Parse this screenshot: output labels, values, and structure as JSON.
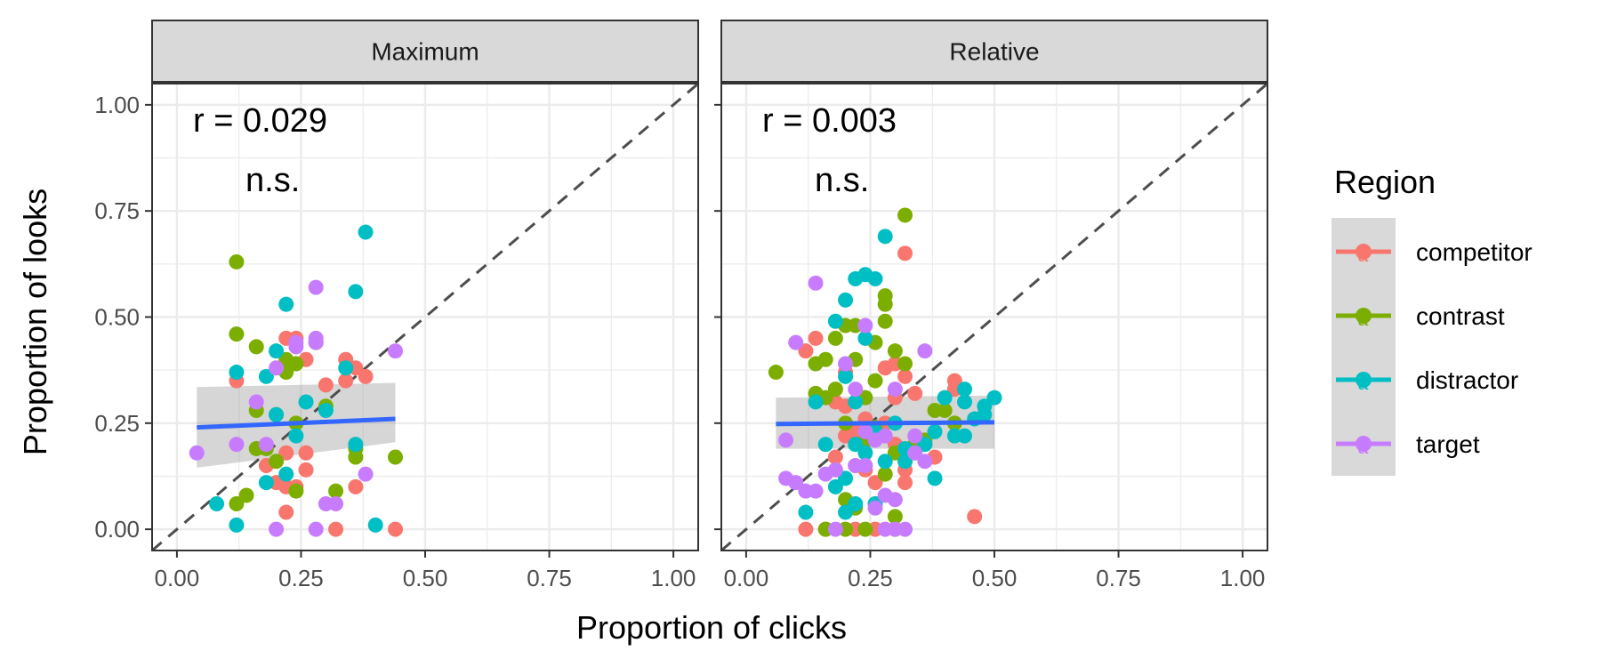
{
  "chart_data": {
    "type": "scatter",
    "xlabel": "Proportion of clicks",
    "ylabel": "Proportion of looks",
    "xlim": [
      -0.05,
      1.05
    ],
    "ylim": [
      -0.05,
      1.05
    ],
    "x_ticks": [
      "0.00",
      "0.25",
      "0.50",
      "0.75",
      "1.00"
    ],
    "y_ticks": [
      "0.00",
      "0.25",
      "0.50",
      "0.75",
      "1.00"
    ],
    "grid": true,
    "reference_line": {
      "slope": 1,
      "intercept": 0,
      "style": "dashed",
      "color": "#4d4d4d"
    },
    "legend": {
      "title": "Region",
      "placement": "right",
      "items": [
        {
          "label": "competitor",
          "color": "#F8766D"
        },
        {
          "label": "contrast",
          "color": "#7CAE00"
        },
        {
          "label": "distractor",
          "color": "#00BFC4"
        },
        {
          "label": "target",
          "color": "#C77CFF"
        }
      ]
    },
    "panels": [
      {
        "title": "Maximum",
        "annotation": "r = 0.029",
        "significance": "n.s.",
        "fit": {
          "color": "#3366FF",
          "x": [
            0.04,
            0.44
          ],
          "y": [
            0.24,
            0.26
          ],
          "ci_lower": [
            0.145,
            0.205
          ],
          "ci_upper": [
            0.335,
            0.345
          ]
        },
        "series": [
          {
            "name": "competitor",
            "points": [
              [
                0.12,
                0.35
              ],
              [
                0.18,
                0.15
              ],
              [
                0.2,
                0.11
              ],
              [
                0.22,
                0.04
              ],
              [
                0.22,
                0.1
              ],
              [
                0.22,
                0.18
              ],
              [
                0.22,
                0.45
              ],
              [
                0.24,
                0.45
              ],
              [
                0.24,
                0.1
              ],
              [
                0.26,
                0.4
              ],
              [
                0.26,
                0.18
              ],
              [
                0.26,
                0.14
              ],
              [
                0.3,
                0.34
              ],
              [
                0.32,
                0.0
              ],
              [
                0.34,
                0.4
              ],
              [
                0.34,
                0.35
              ],
              [
                0.36,
                0.38
              ],
              [
                0.36,
                0.1
              ],
              [
                0.38,
                0.36
              ],
              [
                0.44,
                0.0
              ]
            ]
          },
          {
            "name": "contrast",
            "points": [
              [
                0.12,
                0.63
              ],
              [
                0.12,
                0.46
              ],
              [
                0.12,
                0.06
              ],
              [
                0.14,
                0.08
              ],
              [
                0.16,
                0.43
              ],
              [
                0.16,
                0.28
              ],
              [
                0.16,
                0.19
              ],
              [
                0.18,
                0.19
              ],
              [
                0.2,
                0.27
              ],
              [
                0.2,
                0.16
              ],
              [
                0.22,
                0.37
              ],
              [
                0.22,
                0.4
              ],
              [
                0.24,
                0.39
              ],
              [
                0.24,
                0.25
              ],
              [
                0.24,
                0.09
              ],
              [
                0.28,
                0.44
              ],
              [
                0.3,
                0.29
              ],
              [
                0.32,
                0.09
              ],
              [
                0.36,
                0.19
              ],
              [
                0.36,
                0.17
              ],
              [
                0.44,
                0.17
              ]
            ]
          },
          {
            "name": "distractor",
            "points": [
              [
                0.08,
                0.06
              ],
              [
                0.12,
                0.37
              ],
              [
                0.12,
                0.01
              ],
              [
                0.18,
                0.36
              ],
              [
                0.18,
                0.11
              ],
              [
                0.2,
                0.42
              ],
              [
                0.2,
                0.27
              ],
              [
                0.22,
                0.53
              ],
              [
                0.22,
                0.13
              ],
              [
                0.24,
                0.22
              ],
              [
                0.26,
                0.3
              ],
              [
                0.3,
                0.28
              ],
              [
                0.34,
                0.38
              ],
              [
                0.36,
                0.56
              ],
              [
                0.36,
                0.2
              ],
              [
                0.38,
                0.7
              ],
              [
                0.4,
                0.01
              ]
            ]
          },
          {
            "name": "target",
            "points": [
              [
                0.04,
                0.18
              ],
              [
                0.12,
                0.2
              ],
              [
                0.16,
                0.3
              ],
              [
                0.18,
                0.2
              ],
              [
                0.2,
                0.38
              ],
              [
                0.2,
                0.0
              ],
              [
                0.24,
                0.43
              ],
              [
                0.24,
                0.44
              ],
              [
                0.28,
                0.45
              ],
              [
                0.28,
                0.44
              ],
              [
                0.28,
                0.57
              ],
              [
                0.28,
                0.0
              ],
              [
                0.3,
                0.06
              ],
              [
                0.32,
                0.06
              ],
              [
                0.38,
                0.13
              ],
              [
                0.44,
                0.42
              ]
            ]
          }
        ]
      },
      {
        "title": "Relative",
        "annotation": "r = 0.003",
        "significance": "n.s.",
        "fit": {
          "color": "#3366FF",
          "x": [
            0.06,
            0.5
          ],
          "y": [
            0.248,
            0.252
          ],
          "ci_lower": [
            0.19,
            0.19
          ],
          "ci_upper": [
            0.31,
            0.315
          ]
        },
        "series": [
          {
            "name": "competitor",
            "points": [
              [
                0.12,
                0.42
              ],
              [
                0.12,
                0.0
              ],
              [
                0.14,
                0.45
              ],
              [
                0.16,
                0.0
              ],
              [
                0.18,
                0.3
              ],
              [
                0.18,
                0.17
              ],
              [
                0.2,
                0.37
              ],
              [
                0.2,
                0.29
              ],
              [
                0.2,
                0.22
              ],
              [
                0.22,
                0.23
              ],
              [
                0.22,
                0.15
              ],
              [
                0.22,
                0.0
              ],
              [
                0.24,
                0.26
              ],
              [
                0.24,
                0.14
              ],
              [
                0.26,
                0.11
              ],
              [
                0.26,
                0.0
              ],
              [
                0.28,
                0.38
              ],
              [
                0.28,
                0.25
              ],
              [
                0.3,
                0.39
              ],
              [
                0.3,
                0.31
              ],
              [
                0.3,
                0.2
              ],
              [
                0.32,
                0.65
              ],
              [
                0.32,
                0.36
              ],
              [
                0.32,
                0.14
              ],
              [
                0.32,
                0.11
              ],
              [
                0.34,
                0.32
              ],
              [
                0.36,
                0.2
              ],
              [
                0.38,
                0.17
              ],
              [
                0.42,
                0.35
              ],
              [
                0.42,
                0.33
              ],
              [
                0.46,
                0.03
              ]
            ]
          },
          {
            "name": "contrast",
            "points": [
              [
                0.06,
                0.37
              ],
              [
                0.14,
                0.39
              ],
              [
                0.14,
                0.32
              ],
              [
                0.16,
                0.4
              ],
              [
                0.16,
                0.31
              ],
              [
                0.16,
                0.0
              ],
              [
                0.18,
                0.45
              ],
              [
                0.18,
                0.33
              ],
              [
                0.2,
                0.48
              ],
              [
                0.2,
                0.25
              ],
              [
                0.2,
                0.07
              ],
              [
                0.2,
                0.0
              ],
              [
                0.22,
                0.48
              ],
              [
                0.22,
                0.4
              ],
              [
                0.22,
                0.05
              ],
              [
                0.24,
                0.31
              ],
              [
                0.24,
                0.21
              ],
              [
                0.24,
                0.0
              ],
              [
                0.26,
                0.44
              ],
              [
                0.26,
                0.35
              ],
              [
                0.26,
                0.24
              ],
              [
                0.26,
                0.06
              ],
              [
                0.28,
                0.55
              ],
              [
                0.28,
                0.53
              ],
              [
                0.28,
                0.49
              ],
              [
                0.28,
                0.13
              ],
              [
                0.3,
                0.42
              ],
              [
                0.3,
                0.18
              ],
              [
                0.3,
                0.03
              ],
              [
                0.3,
                0.0
              ],
              [
                0.32,
                0.74
              ],
              [
                0.32,
                0.39
              ],
              [
                0.34,
                0.2
              ],
              [
                0.36,
                0.21
              ],
              [
                0.38,
                0.28
              ],
              [
                0.4,
                0.28
              ],
              [
                0.42,
                0.25
              ]
            ]
          },
          {
            "name": "distractor",
            "points": [
              [
                0.12,
                0.04
              ],
              [
                0.14,
                0.3
              ],
              [
                0.16,
                0.2
              ],
              [
                0.18,
                0.49
              ],
              [
                0.18,
                0.1
              ],
              [
                0.2,
                0.54
              ],
              [
                0.2,
                0.36
              ],
              [
                0.2,
                0.12
              ],
              [
                0.2,
                0.04
              ],
              [
                0.22,
                0.59
              ],
              [
                0.22,
                0.3
              ],
              [
                0.22,
                0.2
              ],
              [
                0.22,
                0.06
              ],
              [
                0.24,
                0.6
              ],
              [
                0.24,
                0.45
              ],
              [
                0.24,
                0.18
              ],
              [
                0.26,
                0.59
              ],
              [
                0.26,
                0.23
              ],
              [
                0.26,
                0.06
              ],
              [
                0.28,
                0.69
              ],
              [
                0.28,
                0.16
              ],
              [
                0.3,
                0.25
              ],
              [
                0.32,
                0.19
              ],
              [
                0.32,
                0.16
              ],
              [
                0.34,
                0.18
              ],
              [
                0.36,
                0.2
              ],
              [
                0.38,
                0.23
              ],
              [
                0.38,
                0.12
              ],
              [
                0.4,
                0.31
              ],
              [
                0.42,
                0.22
              ],
              [
                0.44,
                0.33
              ],
              [
                0.44,
                0.3
              ],
              [
                0.44,
                0.22
              ],
              [
                0.46,
                0.26
              ],
              [
                0.48,
                0.29
              ],
              [
                0.48,
                0.27
              ],
              [
                0.5,
                0.31
              ]
            ]
          },
          {
            "name": "target",
            "points": [
              [
                0.08,
                0.21
              ],
              [
                0.08,
                0.12
              ],
              [
                0.1,
                0.44
              ],
              [
                0.1,
                0.11
              ],
              [
                0.12,
                0.09
              ],
              [
                0.14,
                0.58
              ],
              [
                0.14,
                0.09
              ],
              [
                0.16,
                0.13
              ],
              [
                0.18,
                0.14
              ],
              [
                0.18,
                0.0
              ],
              [
                0.2,
                0.39
              ],
              [
                0.22,
                0.33
              ],
              [
                0.22,
                0.15
              ],
              [
                0.24,
                0.48
              ],
              [
                0.24,
                0.23
              ],
              [
                0.24,
                0.15
              ],
              [
                0.26,
                0.21
              ],
              [
                0.26,
                0.05
              ],
              [
                0.28,
                0.22
              ],
              [
                0.28,
                0.08
              ],
              [
                0.28,
                0.0
              ],
              [
                0.3,
                0.33
              ],
              [
                0.3,
                0.07
              ],
              [
                0.3,
                0.0
              ],
              [
                0.32,
                0.0
              ],
              [
                0.34,
                0.22
              ],
              [
                0.34,
                0.18
              ],
              [
                0.36,
                0.42
              ],
              [
                0.36,
                0.16
              ]
            ]
          }
        ]
      }
    ]
  }
}
